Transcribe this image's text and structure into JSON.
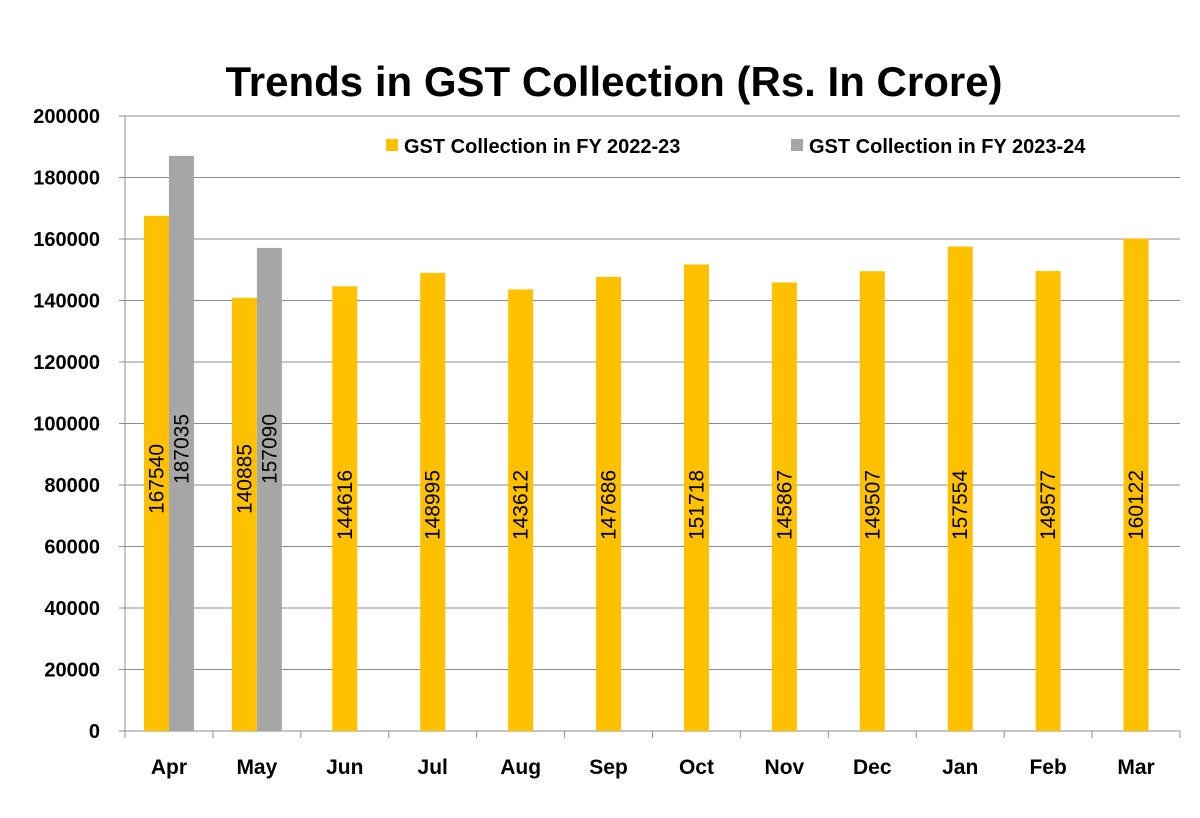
{
  "chart_data": {
    "type": "bar",
    "title": "Trends in GST Collection (Rs. In Crore)",
    "xlabel": "",
    "ylabel": "",
    "categories": [
      "Apr",
      "May",
      "Jun",
      "Jul",
      "Aug",
      "Sep",
      "Oct",
      "Nov",
      "Dec",
      "Jan",
      "Feb",
      "Mar"
    ],
    "series": [
      {
        "name": "GST Collection in FY 2022-23",
        "color": "#FFC000",
        "values": [
          167540,
          140885,
          144616,
          148995,
          143612,
          147686,
          151718,
          145867,
          149507,
          157554,
          149577,
          160122
        ]
      },
      {
        "name": "GST Collection in FY 2023-24",
        "color": "#A6A6A6",
        "values": [
          187035,
          157090,
          null,
          null,
          null,
          null,
          null,
          null,
          null,
          null,
          null,
          null
        ]
      }
    ],
    "ylim": [
      0,
      200000
    ],
    "yticks": [
      0,
      20000,
      40000,
      60000,
      80000,
      100000,
      120000,
      140000,
      160000,
      180000,
      200000
    ],
    "grid": true,
    "legend_position": "top-right",
    "data_labels": "vertical, inside bars"
  }
}
